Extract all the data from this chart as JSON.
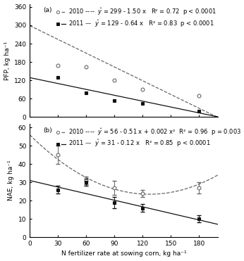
{
  "pfp_x": [
    30,
    60,
    90,
    120,
    180
  ],
  "pfp_2010_y": [
    170,
    165,
    120,
    90,
    70
  ],
  "pfp_2011_y": [
    130,
    80,
    55,
    45,
    20
  ],
  "nae_x": [
    30,
    60,
    90,
    120,
    180
  ],
  "nae_2010_y": [
    45,
    31,
    27,
    24,
    27
  ],
  "nae_2011_y": [
    26,
    30,
    19,
    16,
    10
  ],
  "nae_2010_yerr": [
    5,
    2,
    4,
    2,
    3
  ],
  "nae_2011_yerr": [
    2,
    2,
    3,
    2,
    2
  ],
  "pfp_ylabel": "PFP, kg ha⁻¹",
  "nae_ylabel": "NAE, kg ha⁻¹",
  "xlabel": "N fertilizer rate at sowing corn, kg ha⁻¹",
  "pfp_legend_2010": "2010 ----  $\\hat{y}$ = 299 - 1.50 x   R² = 0.72  p < 0.0001",
  "pfp_legend_2011": "2011 —  $\\hat{y}$ = 129 - 0.64 x   R² = 0.83  p < 0.0001",
  "nae_legend_2010": "2010 ----  $\\hat{y}$ = 56 - 0.51 x + 0.002 x²  R² = 0.96  p = 0.003",
  "nae_legend_2011": "2011 —  $\\hat{y}$ = 31 - 0.12 x   R² = 0.85  p < 0.0001",
  "pfp_ylim": [
    0,
    370
  ],
  "nae_ylim": [
    0,
    62
  ],
  "xlim": [
    0,
    200
  ],
  "xticks": [
    0,
    30,
    60,
    90,
    120,
    150,
    180
  ],
  "pfp_yticks": [
    0,
    60,
    120,
    180,
    240,
    300,
    360
  ],
  "nae_yticks": [
    0,
    10,
    20,
    30,
    40,
    50,
    60
  ],
  "color_2010": "#666666",
  "color_2011": "#111111",
  "fontsize": 6.5,
  "markersize": 3.5,
  "linewidth": 0.9
}
